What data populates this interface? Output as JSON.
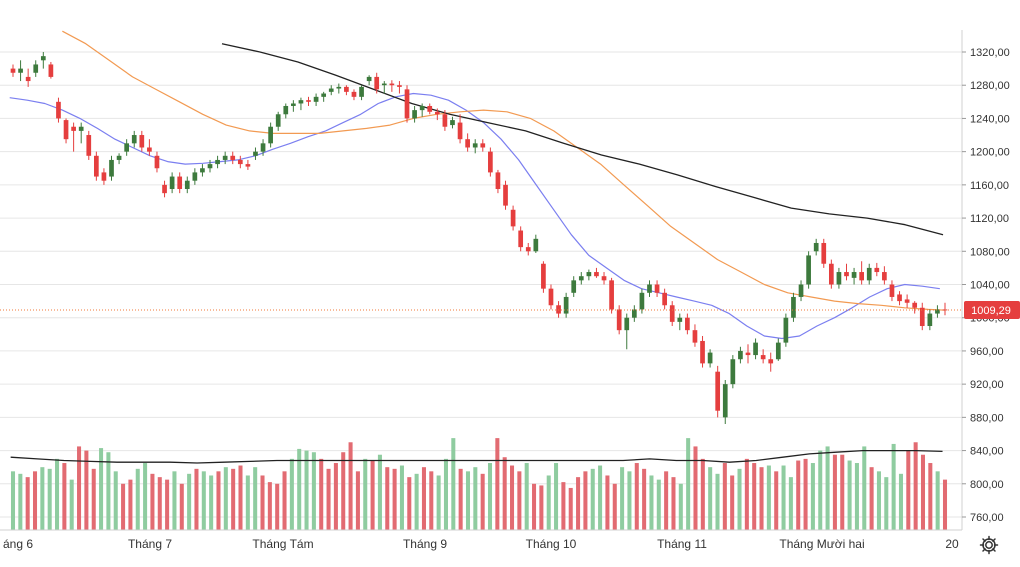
{
  "colors": {
    "up": "#3d7a3d",
    "down": "#e53e3e",
    "vol_up": "#8fcca0",
    "vol_down": "#e26b72",
    "ma_fast": "#7b7ff0",
    "ma_mid": "#f29a52",
    "ma_slow": "#222222",
    "vol_ma": "#222222",
    "grid": "#e6e6e6",
    "last_price_line": "#f07a3a",
    "price_tag": "#e53e3e"
  },
  "price_axis": {
    "ticks": [
      "1320,00",
      "1280,00",
      "1240,00",
      "1200,00",
      "1160,00",
      "1120,00",
      "1080,00",
      "1040,00",
      "1000,00",
      "960,00",
      "920,00",
      "880,00",
      "840,00",
      "800,00",
      "760,00"
    ],
    "tick_values": [
      1320,
      1280,
      1240,
      1200,
      1160,
      1120,
      1080,
      1040,
      1000,
      960,
      920,
      880,
      840,
      800,
      760
    ],
    "last_price_label": "1009,29"
  },
  "time_axis": {
    "labels": [
      "áng 6",
      "Tháng 7",
      "Tháng Tám",
      "Tháng 9",
      "Tháng 10",
      "Tháng 11",
      "Tháng Mười hai",
      "20"
    ]
  },
  "settings_icon": "gear-icon",
  "chart_data": {
    "type": "candlestick",
    "last_price": 1009.29,
    "ylim": [
      740,
      1340
    ],
    "grid": "horizontal",
    "candles": [
      [
        1300,
        1305,
        1290,
        1295
      ],
      [
        1295,
        1310,
        1285,
        1300
      ],
      [
        1290,
        1300,
        1278,
        1285
      ],
      [
        1295,
        1310,
        1290,
        1305
      ],
      [
        1310,
        1320,
        1300,
        1315
      ],
      [
        1305,
        1308,
        1288,
        1290
      ],
      [
        1260,
        1265,
        1235,
        1240
      ],
      [
        1238,
        1240,
        1210,
        1215
      ],
      [
        1230,
        1235,
        1200,
        1225
      ],
      [
        1225,
        1235,
        1210,
        1230
      ],
      [
        1220,
        1225,
        1190,
        1195
      ],
      [
        1195,
        1200,
        1165,
        1170
      ],
      [
        1175,
        1180,
        1160,
        1165
      ],
      [
        1170,
        1195,
        1165,
        1190
      ],
      [
        1190,
        1198,
        1185,
        1195
      ],
      [
        1200,
        1215,
        1195,
        1210
      ],
      [
        1210,
        1225,
        1205,
        1220
      ],
      [
        1220,
        1225,
        1200,
        1205
      ],
      [
        1205,
        1215,
        1195,
        1200
      ],
      [
        1195,
        1200,
        1175,
        1180
      ],
      [
        1160,
        1165,
        1145,
        1150
      ],
      [
        1155,
        1175,
        1150,
        1170
      ],
      [
        1170,
        1175,
        1150,
        1155
      ],
      [
        1155,
        1170,
        1150,
        1165
      ],
      [
        1165,
        1180,
        1160,
        1175
      ],
      [
        1175,
        1185,
        1170,
        1180
      ],
      [
        1180,
        1190,
        1175,
        1185
      ],
      [
        1185,
        1195,
        1180,
        1190
      ],
      [
        1190,
        1200,
        1185,
        1195
      ],
      [
        1195,
        1200,
        1185,
        1190
      ],
      [
        1190,
        1195,
        1180,
        1185
      ],
      [
        1185,
        1190,
        1178,
        1182
      ],
      [
        1195,
        1205,
        1190,
        1200
      ],
      [
        1200,
        1215,
        1195,
        1210
      ],
      [
        1210,
        1235,
        1205,
        1230
      ],
      [
        1230,
        1248,
        1225,
        1245
      ],
      [
        1245,
        1258,
        1240,
        1255
      ],
      [
        1255,
        1262,
        1248,
        1258
      ],
      [
        1258,
        1265,
        1250,
        1262
      ],
      [
        1262,
        1266,
        1255,
        1260
      ],
      [
        1260,
        1270,
        1255,
        1266
      ],
      [
        1266,
        1272,
        1260,
        1270
      ],
      [
        1272,
        1280,
        1268,
        1276
      ],
      [
        1276,
        1282,
        1270,
        1278
      ],
      [
        1278,
        1280,
        1268,
        1272
      ],
      [
        1272,
        1275,
        1262,
        1266
      ],
      [
        1266,
        1280,
        1262,
        1278
      ],
      [
        1285,
        1292,
        1280,
        1290
      ],
      [
        1290,
        1295,
        1270,
        1275
      ],
      [
        1280,
        1285,
        1270,
        1282
      ],
      [
        1282,
        1286,
        1272,
        1280
      ],
      [
        1280,
        1285,
        1270,
        1278
      ],
      [
        1275,
        1280,
        1235,
        1240
      ],
      [
        1240,
        1255,
        1235,
        1250
      ],
      [
        1250,
        1258,
        1242,
        1255
      ],
      [
        1255,
        1258,
        1245,
        1248
      ],
      [
        1248,
        1252,
        1238,
        1245
      ],
      [
        1245,
        1250,
        1225,
        1230
      ],
      [
        1232,
        1242,
        1228,
        1238
      ],
      [
        1235,
        1245,
        1210,
        1215
      ],
      [
        1215,
        1222,
        1200,
        1205
      ],
      [
        1205,
        1215,
        1198,
        1210
      ],
      [
        1210,
        1215,
        1200,
        1205
      ],
      [
        1200,
        1205,
        1170,
        1175
      ],
      [
        1175,
        1178,
        1150,
        1155
      ],
      [
        1160,
        1165,
        1130,
        1135
      ],
      [
        1130,
        1135,
        1105,
        1110
      ],
      [
        1105,
        1110,
        1080,
        1085
      ],
      [
        1085,
        1090,
        1075,
        1080
      ],
      [
        1080,
        1100,
        1078,
        1095
      ],
      [
        1065,
        1068,
        1030,
        1035
      ],
      [
        1035,
        1040,
        1010,
        1015
      ],
      [
        1015,
        1020,
        1000,
        1005
      ],
      [
        1005,
        1030,
        1000,
        1025
      ],
      [
        1030,
        1050,
        1025,
        1045
      ],
      [
        1045,
        1055,
        1040,
        1050
      ],
      [
        1050,
        1058,
        1045,
        1055
      ],
      [
        1055,
        1060,
        1048,
        1050
      ],
      [
        1050,
        1055,
        1040,
        1045
      ],
      [
        1045,
        1048,
        1005,
        1010
      ],
      [
        1010,
        1015,
        980,
        985
      ],
      [
        985,
        1005,
        962,
        1000
      ],
      [
        1000,
        1015,
        995,
        1010
      ],
      [
        1010,
        1035,
        1005,
        1030
      ],
      [
        1030,
        1045,
        1025,
        1040
      ],
      [
        1040,
        1045,
        1025,
        1030
      ],
      [
        1030,
        1035,
        1010,
        1015
      ],
      [
        1015,
        1020,
        990,
        995
      ],
      [
        995,
        1005,
        985,
        1000
      ],
      [
        1000,
        1005,
        980,
        985
      ],
      [
        985,
        992,
        965,
        970
      ],
      [
        972,
        978,
        940,
        945
      ],
      [
        945,
        962,
        940,
        958
      ],
      [
        935,
        942,
        880,
        888
      ],
      [
        880,
        925,
        872,
        920
      ],
      [
        920,
        955,
        915,
        950
      ],
      [
        950,
        965,
        945,
        960
      ],
      [
        958,
        968,
        945,
        955
      ],
      [
        955,
        975,
        950,
        970
      ],
      [
        955,
        962,
        945,
        950
      ],
      [
        950,
        958,
        935,
        945
      ],
      [
        950,
        975,
        948,
        970
      ],
      [
        970,
        1005,
        965,
        1000
      ],
      [
        1000,
        1030,
        995,
        1025
      ],
      [
        1025,
        1045,
        1020,
        1040
      ],
      [
        1040,
        1080,
        1035,
        1075
      ],
      [
        1080,
        1095,
        1075,
        1090
      ],
      [
        1090,
        1095,
        1060,
        1065
      ],
      [
        1065,
        1070,
        1035,
        1040
      ],
      [
        1040,
        1060,
        1035,
        1055
      ],
      [
        1055,
        1065,
        1045,
        1050
      ],
      [
        1048,
        1060,
        1040,
        1055
      ],
      [
        1055,
        1068,
        1040,
        1045
      ],
      [
        1045,
        1065,
        1040,
        1060
      ],
      [
        1060,
        1066,
        1050,
        1055
      ],
      [
        1055,
        1062,
        1040,
        1045
      ],
      [
        1040,
        1045,
        1020,
        1025
      ],
      [
        1028,
        1032,
        1015,
        1020
      ],
      [
        1022,
        1028,
        1012,
        1018
      ],
      [
        1018,
        1020,
        1005,
        1012
      ],
      [
        1012,
        1018,
        985,
        990
      ],
      [
        990,
        1010,
        985,
        1005
      ],
      [
        1005,
        1015,
        1000,
        1010
      ],
      [
        1010,
        1018,
        1003,
        1009.29
      ]
    ],
    "volume": [
      [
        815,
        "up"
      ],
      [
        812,
        "up"
      ],
      [
        808,
        "down"
      ],
      [
        815,
        "down"
      ],
      [
        820,
        "up"
      ],
      [
        818,
        "up"
      ],
      [
        830,
        "up"
      ],
      [
        825,
        "down"
      ],
      [
        805,
        "up"
      ],
      [
        845,
        "down"
      ],
      [
        840,
        "down"
      ],
      [
        818,
        "down"
      ],
      [
        843,
        "up"
      ],
      [
        838,
        "up"
      ],
      [
        815,
        "up"
      ],
      [
        800,
        "down"
      ],
      [
        805,
        "down"
      ],
      [
        818,
        "up"
      ],
      [
        825,
        "up"
      ],
      [
        812,
        "down"
      ],
      [
        808,
        "down"
      ],
      [
        805,
        "down"
      ],
      [
        815,
        "up"
      ],
      [
        800,
        "down"
      ],
      [
        812,
        "up"
      ],
      [
        818,
        "down"
      ],
      [
        815,
        "up"
      ],
      [
        810,
        "up"
      ],
      [
        815,
        "down"
      ],
      [
        820,
        "up"
      ],
      [
        818,
        "down"
      ],
      [
        822,
        "down"
      ],
      [
        810,
        "up"
      ],
      [
        820,
        "up"
      ],
      [
        810,
        "down"
      ],
      [
        802,
        "down"
      ],
      [
        800,
        "down"
      ],
      [
        815,
        "down"
      ],
      [
        830,
        "up"
      ],
      [
        842,
        "up"
      ],
      [
        840,
        "up"
      ],
      [
        838,
        "up"
      ],
      [
        830,
        "down"
      ],
      [
        818,
        "down"
      ],
      [
        825,
        "down"
      ],
      [
        838,
        "down"
      ],
      [
        850,
        "down"
      ],
      [
        815,
        "down"
      ],
      [
        830,
        "up"
      ],
      [
        828,
        "down"
      ],
      [
        835,
        "up"
      ],
      [
        820,
        "down"
      ],
      [
        818,
        "down"
      ],
      [
        822,
        "up"
      ],
      [
        808,
        "down"
      ],
      [
        812,
        "up"
      ],
      [
        820,
        "down"
      ],
      [
        815,
        "down"
      ],
      [
        810,
        "up"
      ],
      [
        830,
        "up"
      ],
      [
        855,
        "up"
      ],
      [
        818,
        "down"
      ],
      [
        815,
        "up"
      ],
      [
        820,
        "up"
      ],
      [
        812,
        "down"
      ],
      [
        825,
        "up"
      ],
      [
        855,
        "down"
      ],
      [
        832,
        "down"
      ],
      [
        822,
        "down"
      ],
      [
        815,
        "down"
      ],
      [
        825,
        "up"
      ],
      [
        800,
        "down"
      ],
      [
        798,
        "down"
      ],
      [
        810,
        "up"
      ],
      [
        825,
        "up"
      ],
      [
        802,
        "down"
      ],
      [
        795,
        "down"
      ],
      [
        808,
        "down"
      ],
      [
        815,
        "down"
      ],
      [
        818,
        "up"
      ],
      [
        822,
        "up"
      ],
      [
        810,
        "down"
      ],
      [
        800,
        "down"
      ],
      [
        820,
        "up"
      ],
      [
        815,
        "up"
      ],
      [
        825,
        "down"
      ],
      [
        818,
        "down"
      ],
      [
        810,
        "up"
      ],
      [
        805,
        "up"
      ],
      [
        815,
        "down"
      ],
      [
        808,
        "down"
      ],
      [
        800,
        "up"
      ],
      [
        855,
        "up"
      ],
      [
        845,
        "down"
      ],
      [
        830,
        "down"
      ],
      [
        820,
        "up"
      ],
      [
        812,
        "up"
      ],
      [
        825,
        "down"
      ],
      [
        810,
        "down"
      ],
      [
        818,
        "up"
      ],
      [
        830,
        "down"
      ],
      [
        825,
        "down"
      ],
      [
        820,
        "down"
      ],
      [
        822,
        "up"
      ],
      [
        815,
        "down"
      ],
      [
        822,
        "up"
      ],
      [
        808,
        "up"
      ],
      [
        828,
        "down"
      ],
      [
        830,
        "down"
      ],
      [
        825,
        "up"
      ],
      [
        840,
        "up"
      ],
      [
        845,
        "up"
      ],
      [
        835,
        "down"
      ],
      [
        835,
        "down"
      ],
      [
        828,
        "up"
      ],
      [
        825,
        "up"
      ],
      [
        845,
        "up"
      ],
      [
        820,
        "down"
      ],
      [
        815,
        "up"
      ],
      [
        808,
        "up"
      ],
      [
        848,
        "up"
      ],
      [
        812,
        "up"
      ],
      [
        840,
        "down"
      ],
      [
        850,
        "down"
      ],
      [
        835,
        "down"
      ],
      [
        825,
        "down"
      ],
      [
        815,
        "up"
      ],
      [
        805,
        "down"
      ]
    ],
    "ma_fast": [
      1265,
      1262,
      1258,
      1250,
      1240,
      1228,
      1215,
      1205,
      1195,
      1188,
      1185,
      1186,
      1188,
      1190,
      1195,
      1203,
      1210,
      1218,
      1225,
      1235,
      1245,
      1258,
      1266,
      1270,
      1268,
      1262,
      1250,
      1235,
      1215,
      1190,
      1160,
      1130,
      1100,
      1075,
      1060,
      1045,
      1035,
      1030,
      1025,
      1020,
      1015,
      1005,
      990,
      978,
      975,
      978,
      990,
      1000,
      1012,
      1025,
      1035,
      1040,
      1038,
      1035
    ],
    "ma_fast_x": [
      10,
      25,
      40,
      55,
      70,
      85,
      100,
      115,
      130,
      145,
      160,
      175,
      190,
      205,
      220,
      235,
      250,
      265,
      280,
      295,
      310,
      325,
      340,
      355,
      370,
      385,
      400,
      415,
      430,
      445,
      460,
      475,
      490,
      505,
      520,
      535,
      550,
      565,
      580,
      595,
      610,
      625,
      640,
      655,
      670,
      685,
      700,
      715,
      730,
      745,
      760,
      775,
      790,
      805
    ],
    "ma_mid": [
      1345,
      1330,
      1310,
      1290,
      1275,
      1260,
      1245,
      1232,
      1225,
      1222,
      1222,
      1222,
      1225,
      1228,
      1232,
      1240,
      1245,
      1248,
      1250,
      1248,
      1240,
      1225,
      1205,
      1185,
      1160,
      1135,
      1110,
      1090,
      1070,
      1055,
      1040,
      1030,
      1025,
      1020,
      1017,
      1015,
      1012,
      1010,
      1009
    ],
    "ma_mid_x": [
      55,
      75,
      95,
      115,
      135,
      155,
      175,
      195,
      215,
      235,
      255,
      275,
      295,
      315,
      335,
      355,
      375,
      395,
      415,
      435,
      455,
      475,
      495,
      515,
      535,
      555,
      575,
      595,
      615,
      635,
      655,
      675,
      695,
      715,
      735,
      755,
      775,
      795,
      810
    ],
    "ma_slow": [
      1330,
      1320,
      1308,
      1292,
      1275,
      1258,
      1245,
      1235,
      1225,
      1210,
      1196,
      1185,
      1172,
      1158,
      1145,
      1132,
      1125,
      1120,
      1112,
      1100
    ],
    "ma_slow_x": [
      222,
      252,
      282,
      312,
      342,
      372,
      402,
      432,
      462,
      492,
      522,
      552,
      582,
      612,
      642,
      672,
      702,
      732,
      762,
      792
    ],
    "vol_ma": [
      832,
      830,
      828,
      827,
      826,
      826,
      826,
      825,
      826,
      827,
      828,
      828,
      828,
      828,
      828,
      828,
      828,
      828,
      828,
      828,
      828,
      828,
      828,
      828,
      830,
      828,
      828,
      826,
      828,
      832,
      836,
      838,
      840,
      840,
      840,
      839
    ],
    "vol_ma_x": [
      10,
      35,
      60,
      85,
      110,
      135,
      160,
      185,
      210,
      235,
      260,
      285,
      310,
      335,
      360,
      385,
      410,
      435,
      460,
      485,
      510,
      535,
      560,
      585,
      610,
      635,
      660,
      685,
      710,
      735,
      760,
      785,
      810,
      835,
      860,
      885
    ]
  }
}
